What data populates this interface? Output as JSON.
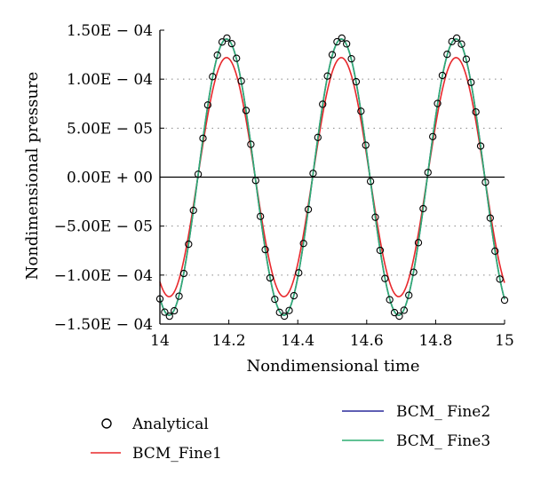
{
  "chart_data": {
    "type": "line",
    "xlabel": "Nondimensional time",
    "ylabel": "Nondimensional pressure",
    "xlim": [
      14,
      15
    ],
    "ylim": [
      -0.00015,
      0.00015
    ],
    "x_ticks": [
      14,
      14.2,
      14.4,
      14.6,
      14.8,
      15
    ],
    "x_tick_labels": [
      "14",
      "14.2",
      "14.4",
      "14.6",
      "14.8",
      "15"
    ],
    "y_ticks": [
      0.00015,
      0.0001,
      5e-05,
      0,
      -5e-05,
      -0.0001,
      -0.00015
    ],
    "y_tick_labels": [
      "1.50E − 04",
      "1.00E − 04",
      "5.00E − 05",
      "0.00E + 00",
      "−5.00E − 05",
      "−1.00E − 04",
      "−1.50E − 04"
    ],
    "horizontal_grid": "dotted",
    "legend_placement": "below",
    "wave": {
      "period": 0.333,
      "phase_zero_crossing_up": 14.11
    },
    "series": [
      {
        "name": "Analytical",
        "style": "markers",
        "marker": "open-circle",
        "color": "#000000",
        "amplitude": 0.000142
      },
      {
        "name": "BCM_Fine1",
        "style": "line",
        "color": "#e8282c",
        "amplitude": 0.000122
      },
      {
        "name": "BCM_ Fine2",
        "style": "line",
        "color": "#2a2a9c",
        "amplitude": 0.000141
      },
      {
        "name": "BCM_ Fine3",
        "style": "line",
        "color": "#2fae72",
        "amplitude": 0.000141
      }
    ]
  }
}
